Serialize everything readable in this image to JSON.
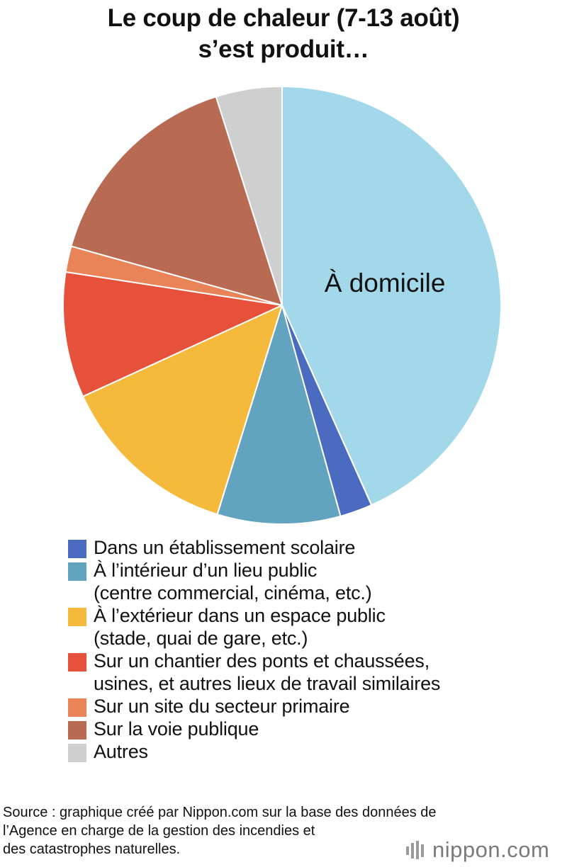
{
  "title": {
    "line1": "Le coup de chaleur (7-13 août)",
    "line2": "s’est produit…"
  },
  "chart_data": {
    "type": "pie",
    "title": "Le coup de chaleur (7-13 août) s’est produit…",
    "slices": [
      {
        "name": "À domicile",
        "value": 45.3,
        "color": "#a3d8ea",
        "label": "À domicile"
      },
      {
        "name": "Dans un établissement scolaire",
        "value": 2.5,
        "color": "#4a6bc0"
      },
      {
        "name": "À l’intérieur d’un lieu public (centre commercial, cinéma, etc.)",
        "value": 9.5,
        "color": "#62a4c0"
      },
      {
        "name": "À l’extérieur dans un espace public (stade, quai de gare, etc.)",
        "value": 14.0,
        "color": "#f5b93c"
      },
      {
        "name": "Sur un chantier des ponts et chaussées, usines, et autres lieux de travail similaires",
        "value": 9.7,
        "color": "#e5513a"
      },
      {
        "name": "Sur un site du secteur primaire",
        "value": 2.0,
        "color": "#e88458"
      },
      {
        "name": "Sur la voie publique",
        "value": 16.5,
        "color": "#b96a53"
      },
      {
        "name": "Autres",
        "value": 5.1,
        "color": "#cfcfcf"
      }
    ],
    "start_angle_deg": 0,
    "direction": "clockwise",
    "legend_position": "bottom"
  },
  "legend": [
    {
      "lines": [
        "Dans un établissement scolaire"
      ],
      "color": "#4a6bc0"
    },
    {
      "lines": [
        "À l’intérieur d’un lieu public",
        "(centre commercial, cinéma, etc.)"
      ],
      "color": "#62a4c0"
    },
    {
      "lines": [
        "À l’extérieur dans un espace public",
        "(stade, quai de gare, etc.)"
      ],
      "color": "#f5b93c"
    },
    {
      "lines": [
        "Sur un chantier des ponts et chaussées,",
        "usines, et autres lieux de travail similaires"
      ],
      "color": "#e5513a"
    },
    {
      "lines": [
        "Sur un site du secteur primaire"
      ],
      "color": "#e88458"
    },
    {
      "lines": [
        "Sur la voie publique"
      ],
      "color": "#b96a53"
    },
    {
      "lines": [
        "Autres"
      ],
      "color": "#cfcfcf"
    }
  ],
  "source": {
    "line1": "Source : graphique créé par Nippon.com sur la base des données de",
    "line2": "l’Agence en charge de la gestion des incendies et",
    "line3": "des catastrophes naturelles."
  },
  "logo": {
    "text": "nippon.com",
    "icon": "nippon-bars-icon"
  }
}
